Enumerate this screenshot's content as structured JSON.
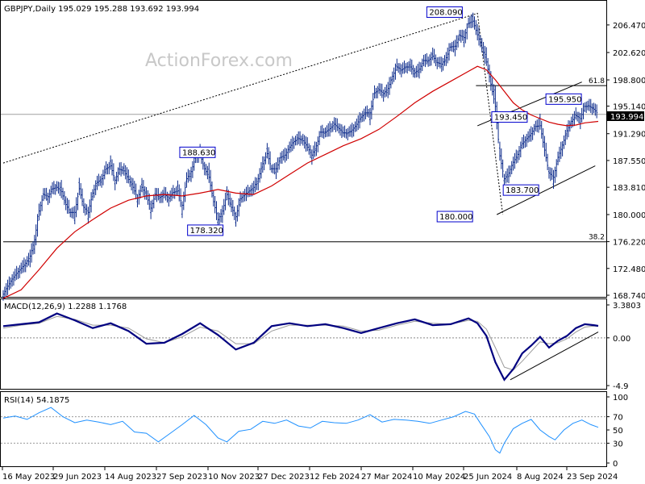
{
  "chart_data": {
    "type": "line",
    "symbol_header": "GBPJPY,Daily  195.029 195.288 193.692 193.994",
    "watermark": "ActionForex.com",
    "last_price": "193.994",
    "x_tick_labels": [
      "16 May 2023",
      "29 Jun 2023",
      "14 Aug 2023",
      "27 Sep 2023",
      "10 Nov 2023",
      "27 Dec 2023",
      "12 Feb 2024",
      "27 Mar 2024",
      "10 May 2024",
      "25 Jun 2024",
      "8 Aug 2024",
      "23 Sep 2024"
    ],
    "price_panel": {
      "ylim": [
        168.74,
        209.5
      ],
      "y_tick_labels": [
        206.47,
        202.62,
        198.8,
        195.14,
        191.29,
        187.55,
        183.81,
        180.0,
        176.22,
        172.48,
        168.74
      ],
      "y_tick_texts": [
        "206.470",
        "202.620",
        "198.800",
        "195.140",
        "191.290",
        "187.550",
        "183.810",
        "180.000",
        "176.220",
        "172.480",
        "168.740"
      ],
      "close_series": [
        [
          0,
          168.9
        ],
        [
          3,
          170.0
        ],
        [
          6,
          171.0
        ],
        [
          9,
          171.8
        ],
        [
          12,
          172.5
        ],
        [
          15,
          173.2
        ],
        [
          18,
          174.2
        ],
        [
          21,
          176.5
        ],
        [
          24,
          180.5
        ],
        [
          27,
          182.8
        ],
        [
          30,
          182.5
        ],
        [
          33,
          183.6
        ],
        [
          36,
          183.8
        ],
        [
          39,
          183.2
        ],
        [
          42,
          181.4
        ],
        [
          45,
          180.3
        ],
        [
          48,
          180.3
        ],
        [
          51,
          183.6
        ],
        [
          54,
          181.0
        ],
        [
          57,
          180.3
        ],
        [
          60,
          183.0
        ],
        [
          63,
          184.5
        ],
        [
          66,
          185.0
        ],
        [
          69,
          186.4
        ],
        [
          72,
          186.8
        ],
        [
          75,
          184.8
        ],
        [
          78,
          186.3
        ],
        [
          81,
          186.1
        ],
        [
          84,
          184.9
        ],
        [
          87,
          183.8
        ],
        [
          90,
          182.3
        ],
        [
          93,
          183.8
        ],
        [
          96,
          182.6
        ],
        [
          99,
          180.9
        ],
        [
          102,
          182.8
        ],
        [
          105,
          182.4
        ],
        [
          108,
          182.8
        ],
        [
          111,
          182.3
        ],
        [
          114,
          183.1
        ],
        [
          117,
          183.3
        ],
        [
          120,
          181.3
        ],
        [
          123,
          185.0
        ],
        [
          126,
          186.0
        ],
        [
          129,
          188.0
        ],
        [
          132,
          188.4
        ],
        [
          135,
          186.4
        ],
        [
          138,
          185.2
        ],
        [
          141,
          181.8
        ],
        [
          144,
          179.3
        ],
        [
          147,
          180.5
        ],
        [
          150,
          182.8
        ],
        [
          153,
          181.0
        ],
        [
          156,
          179.7
        ],
        [
          159,
          182.2
        ],
        [
          162,
          182.8
        ],
        [
          165,
          183.3
        ],
        [
          168,
          183.8
        ],
        [
          171,
          185.0
        ],
        [
          174,
          187.1
        ],
        [
          177,
          188.5
        ],
        [
          180,
          186.4
        ],
        [
          183,
          186.4
        ],
        [
          186,
          188.0
        ],
        [
          189,
          188.3
        ],
        [
          192,
          189.4
        ],
        [
          195,
          190.2
        ],
        [
          198,
          190.6
        ],
        [
          201,
          190.3
        ],
        [
          204,
          189.4
        ],
        [
          207,
          188.3
        ],
        [
          210,
          189.6
        ],
        [
          213,
          191.5
        ],
        [
          216,
          191.5
        ],
        [
          219,
          192.0
        ],
        [
          222,
          192.6
        ],
        [
          225,
          192.0
        ],
        [
          228,
          191.4
        ],
        [
          231,
          191.4
        ],
        [
          234,
          191.8
        ],
        [
          237,
          192.6
        ],
        [
          240,
          193.6
        ],
        [
          243,
          194.2
        ],
        [
          246,
          194.2
        ],
        [
          249,
          197.0
        ],
        [
          252,
          197.4
        ],
        [
          255,
          196.9
        ],
        [
          258,
          197.6
        ],
        [
          261,
          199.3
        ],
        [
          264,
          200.6
        ],
        [
          267,
          200.2
        ],
        [
          270,
          200.6
        ],
        [
          273,
          200.6
        ],
        [
          276,
          199.8
        ],
        [
          279,
          200.3
        ],
        [
          282,
          201.5
        ],
        [
          285,
          201.5
        ],
        [
          288,
          202.1
        ],
        [
          291,
          201.2
        ],
        [
          294,
          201.0
        ],
        [
          297,
          201.9
        ],
        [
          300,
          203.4
        ],
        [
          303,
          203.5
        ],
        [
          306,
          205.0
        ],
        [
          309,
          204.7
        ],
        [
          312,
          206.7
        ],
        [
          315,
          207.0
        ],
        [
          318,
          205.1
        ],
        [
          321,
          203.3
        ],
        [
          324,
          201.3
        ],
        [
          327,
          198.2
        ],
        [
          330,
          195.1
        ],
        [
          333,
          188.2
        ],
        [
          336,
          185.0
        ],
        [
          339,
          185.8
        ],
        [
          342,
          187.3
        ],
        [
          345,
          188.4
        ],
        [
          348,
          189.9
        ],
        [
          351,
          190.6
        ],
        [
          354,
          191.3
        ],
        [
          357,
          192.3
        ],
        [
          360,
          192.4
        ],
        [
          363,
          189.0
        ],
        [
          366,
          185.8
        ],
        [
          369,
          185.2
        ],
        [
          372,
          188.0
        ],
        [
          375,
          189.7
        ],
        [
          378,
          191.7
        ],
        [
          381,
          193.0
        ],
        [
          384,
          193.8
        ],
        [
          387,
          193.4
        ],
        [
          390,
          195.1
        ],
        [
          393,
          195.1
        ],
        [
          396,
          194.7
        ],
        [
          399,
          194.0
        ]
      ],
      "ma_series": [
        [
          0,
          168.3
        ],
        [
          12,
          169.5
        ],
        [
          24,
          172.3
        ],
        [
          36,
          175.3
        ],
        [
          48,
          177.6
        ],
        [
          60,
          179.3
        ],
        [
          72,
          180.9
        ],
        [
          84,
          182.0
        ],
        [
          96,
          182.6
        ],
        [
          108,
          182.8
        ],
        [
          120,
          182.6
        ],
        [
          132,
          183.0
        ],
        [
          144,
          183.5
        ],
        [
          156,
          183.0
        ],
        [
          168,
          182.8
        ],
        [
          180,
          184.0
        ],
        [
          192,
          185.6
        ],
        [
          204,
          187.2
        ],
        [
          216,
          188.4
        ],
        [
          228,
          189.6
        ],
        [
          240,
          190.6
        ],
        [
          252,
          191.9
        ],
        [
          264,
          193.7
        ],
        [
          276,
          195.6
        ],
        [
          288,
          197.2
        ],
        [
          300,
          198.6
        ],
        [
          312,
          200.0
        ],
        [
          318,
          200.7
        ],
        [
          324,
          200.2
        ],
        [
          330,
          198.8
        ],
        [
          336,
          197.2
        ],
        [
          342,
          195.6
        ],
        [
          348,
          194.6
        ],
        [
          354,
          193.9
        ],
        [
          360,
          193.4
        ],
        [
          366,
          192.9
        ],
        [
          372,
          192.6
        ],
        [
          378,
          192.4
        ],
        [
          384,
          192.5
        ],
        [
          390,
          192.8
        ],
        [
          399,
          193.0
        ]
      ],
      "dotted_line": [
        [
          0,
          187.2
        ],
        [
          318,
          208.09
        ],
        [
          335,
          180.0
        ]
      ],
      "channel_upper": [
        [
          318,
          192.4
        ],
        [
          388,
          198.5
        ]
      ],
      "channel_lower": [
        [
          331,
          180.0
        ],
        [
          397,
          186.8
        ]
      ],
      "level_lines": [
        {
          "label": "61.8",
          "value": 198.0,
          "x_start": 317
        },
        {
          "label": "38.2",
          "value": 176.2,
          "x_start": 0
        }
      ],
      "annotations": [
        {
          "label": "208.090",
          "x": 310,
          "y": 208.09
        },
        {
          "label": "188.630",
          "x": 120,
          "y": 188.63
        },
        {
          "label": "178.320",
          "x": 142,
          "y": 178.32
        },
        {
          "label": "195.950",
          "x": 365,
          "y": 195.95
        },
        {
          "label": "193.450",
          "x": 333,
          "y": 193.45
        },
        {
          "label": "183.700",
          "x": 338,
          "y": 183.7
        },
        {
          "label": "180.000",
          "x": 318,
          "y": 180.0
        }
      ]
    },
    "macd_panel": {
      "header": "MACD(12,26,9) 1.2288 1.1768",
      "ylim": [
        -4.9,
        3.3803
      ],
      "y_tick_texts": [
        "3.3803",
        "0.00",
        "-4.9"
      ],
      "y_tick_values": [
        3.3803,
        0.0,
        -4.9
      ],
      "macd_series": [
        [
          0,
          1.2
        ],
        [
          12,
          1.4
        ],
        [
          24,
          1.6
        ],
        [
          36,
          2.5
        ],
        [
          48,
          1.8
        ],
        [
          60,
          1.0
        ],
        [
          72,
          1.5
        ],
        [
          84,
          0.7
        ],
        [
          96,
          -0.6
        ],
        [
          108,
          -0.5
        ],
        [
          120,
          0.4
        ],
        [
          132,
          1.5
        ],
        [
          144,
          0.3
        ],
        [
          156,
          -1.2
        ],
        [
          168,
          -0.5
        ],
        [
          180,
          1.2
        ],
        [
          192,
          1.5
        ],
        [
          204,
          1.2
        ],
        [
          216,
          1.4
        ],
        [
          228,
          1.0
        ],
        [
          240,
          0.5
        ],
        [
          252,
          1.0
        ],
        [
          264,
          1.5
        ],
        [
          276,
          1.9
        ],
        [
          288,
          1.3
        ],
        [
          300,
          1.4
        ],
        [
          312,
          2.0
        ],
        [
          318,
          1.5
        ],
        [
          324,
          0.2
        ],
        [
          330,
          -2.5
        ],
        [
          336,
          -4.3
        ],
        [
          342,
          -3.2
        ],
        [
          348,
          -1.6
        ],
        [
          354,
          -0.8
        ],
        [
          360,
          0.1
        ],
        [
          366,
          -1.0
        ],
        [
          372,
          -0.3
        ],
        [
          378,
          0.2
        ],
        [
          384,
          1.0
        ],
        [
          390,
          1.4
        ],
        [
          396,
          1.3
        ],
        [
          399,
          1.23
        ]
      ],
      "signal_series": [
        [
          0,
          1.0
        ],
        [
          12,
          1.3
        ],
        [
          24,
          1.5
        ],
        [
          36,
          2.2
        ],
        [
          48,
          1.9
        ],
        [
          60,
          1.3
        ],
        [
          72,
          1.3
        ],
        [
          84,
          1.0
        ],
        [
          96,
          -0.1
        ],
        [
          108,
          -0.5
        ],
        [
          120,
          0.1
        ],
        [
          132,
          1.1
        ],
        [
          144,
          0.7
        ],
        [
          156,
          -0.6
        ],
        [
          168,
          -0.6
        ],
        [
          180,
          0.7
        ],
        [
          192,
          1.3
        ],
        [
          204,
          1.3
        ],
        [
          216,
          1.3
        ],
        [
          228,
          1.2
        ],
        [
          240,
          0.7
        ],
        [
          252,
          0.8
        ],
        [
          264,
          1.3
        ],
        [
          276,
          1.7
        ],
        [
          288,
          1.5
        ],
        [
          300,
          1.4
        ],
        [
          312,
          1.8
        ],
        [
          318,
          1.7
        ],
        [
          324,
          0.9
        ],
        [
          330,
          -1.0
        ],
        [
          336,
          -3.0
        ],
        [
          342,
          -3.3
        ],
        [
          348,
          -2.4
        ],
        [
          354,
          -1.4
        ],
        [
          360,
          -0.4
        ],
        [
          366,
          -0.6
        ],
        [
          372,
          -0.5
        ],
        [
          378,
          -0.1
        ],
        [
          384,
          0.6
        ],
        [
          390,
          1.1
        ],
        [
          396,
          1.2
        ],
        [
          399,
          1.18
        ]
      ],
      "trendline": [
        [
          340,
          -4.3
        ],
        [
          399,
          0.6
        ]
      ]
    },
    "rsi_panel": {
      "header": "RSI(14) 54.1875",
      "ylim": [
        0,
        100
      ],
      "y_tick_texts": [
        "100",
        "70",
        "50",
        "30",
        "0"
      ],
      "y_tick_values": [
        100,
        70,
        50,
        30,
        0
      ],
      "rsi_series": [
        [
          0,
          68
        ],
        [
          8,
          71
        ],
        [
          16,
          66
        ],
        [
          24,
          76
        ],
        [
          32,
          84
        ],
        [
          40,
          70
        ],
        [
          48,
          61
        ],
        [
          56,
          65
        ],
        [
          64,
          62
        ],
        [
          72,
          58
        ],
        [
          80,
          63
        ],
        [
          88,
          47
        ],
        [
          96,
          45
        ],
        [
          104,
          32
        ],
        [
          112,
          45
        ],
        [
          120,
          58
        ],
        [
          128,
          72
        ],
        [
          136,
          58
        ],
        [
          144,
          38
        ],
        [
          150,
          32
        ],
        [
          158,
          48
        ],
        [
          166,
          51
        ],
        [
          174,
          63
        ],
        [
          182,
          60
        ],
        [
          190,
          65
        ],
        [
          198,
          56
        ],
        [
          206,
          53
        ],
        [
          214,
          63
        ],
        [
          222,
          61
        ],
        [
          230,
          60
        ],
        [
          238,
          65
        ],
        [
          246,
          73
        ],
        [
          254,
          62
        ],
        [
          262,
          66
        ],
        [
          270,
          65
        ],
        [
          278,
          63
        ],
        [
          286,
          60
        ],
        [
          294,
          65
        ],
        [
          302,
          70
        ],
        [
          310,
          78
        ],
        [
          316,
          74
        ],
        [
          320,
          60
        ],
        [
          326,
          40
        ],
        [
          330,
          20
        ],
        [
          333,
          15
        ],
        [
          336,
          30
        ],
        [
          342,
          52
        ],
        [
          348,
          60
        ],
        [
          354,
          66
        ],
        [
          360,
          50
        ],
        [
          366,
          40
        ],
        [
          370,
          35
        ],
        [
          376,
          50
        ],
        [
          382,
          60
        ],
        [
          388,
          65
        ],
        [
          394,
          58
        ],
        [
          399,
          54
        ]
      ]
    }
  }
}
